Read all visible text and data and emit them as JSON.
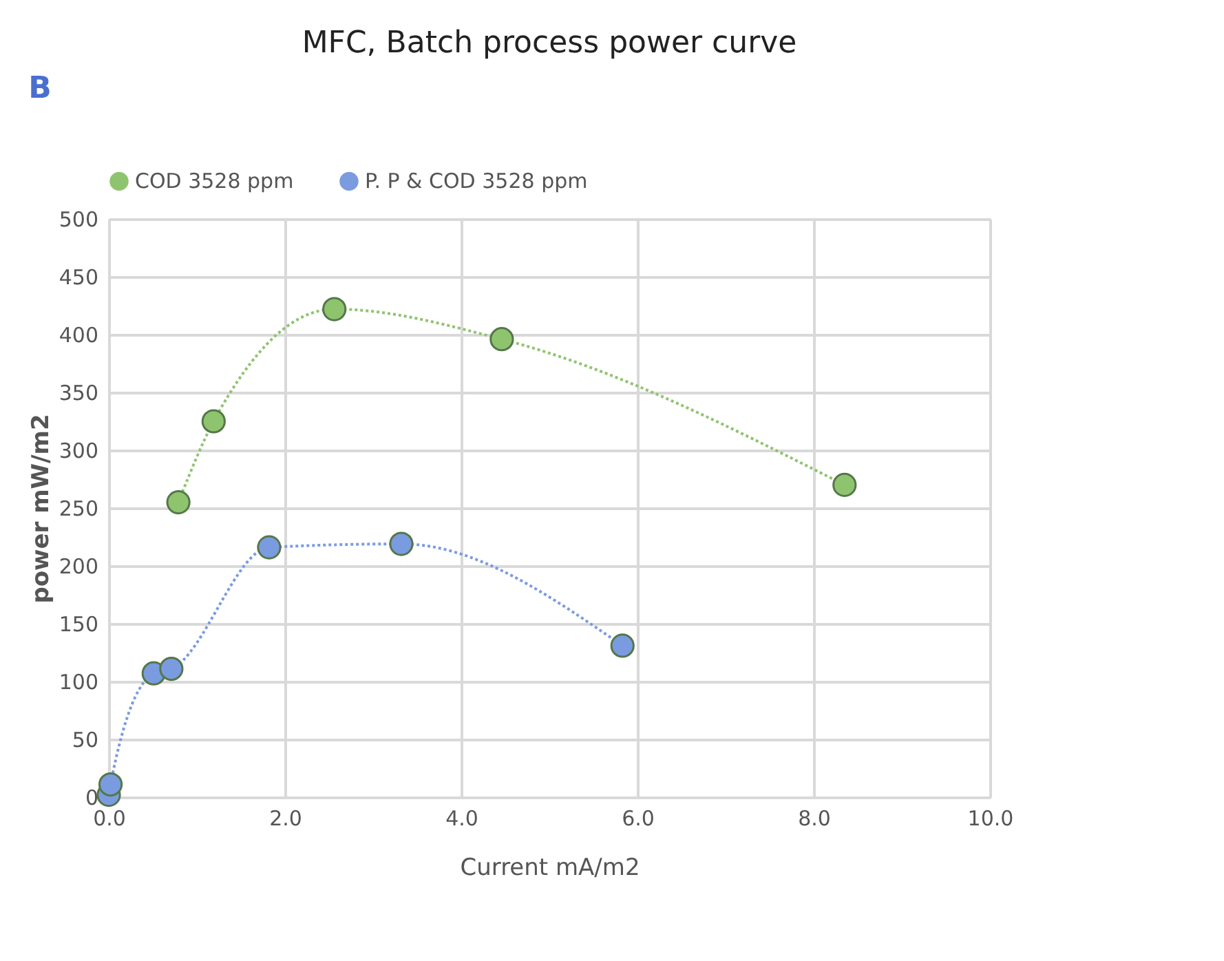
{
  "chart_data": {
    "type": "line",
    "title": "MFC, Batch process power curve",
    "xlabel": "Current mA/m2",
    "ylabel": "power mW/m2",
    "annotations": [
      "B"
    ],
    "series": [
      {
        "name": "COD 3528 ppm",
        "color": "#8fc46f",
        "x": [
          0.79,
          1.19,
          2.56,
          4.46,
          8.35
        ],
        "values": [
          255,
          325,
          422,
          396,
          270
        ]
      },
      {
        "name": "P. P & COD 3528 ppm",
        "color": "#7b9be0",
        "x": [
          0.0,
          0.02,
          0.51,
          0.71,
          1.82,
          3.32,
          5.83
        ],
        "values": [
          2,
          11,
          107,
          111,
          216,
          219,
          131
        ]
      }
    ],
    "xlim": [
      0,
      10
    ],
    "xticks": [
      {
        "value": 0,
        "label": "0.0"
      },
      {
        "value": 2,
        "label": "2.0"
      },
      {
        "value": 4,
        "label": "4.0"
      },
      {
        "value": 6,
        "label": "6.0"
      },
      {
        "value": 8,
        "label": "8.0"
      },
      {
        "value": 10,
        "label": "10.0"
      }
    ],
    "ylim": [
      0,
      500
    ],
    "yticks": [
      0,
      50,
      100,
      150,
      200,
      250,
      300,
      350,
      400,
      450,
      500
    ],
    "grid": true,
    "legend": "top",
    "marker": "circle",
    "line_style": "dotted"
  }
}
